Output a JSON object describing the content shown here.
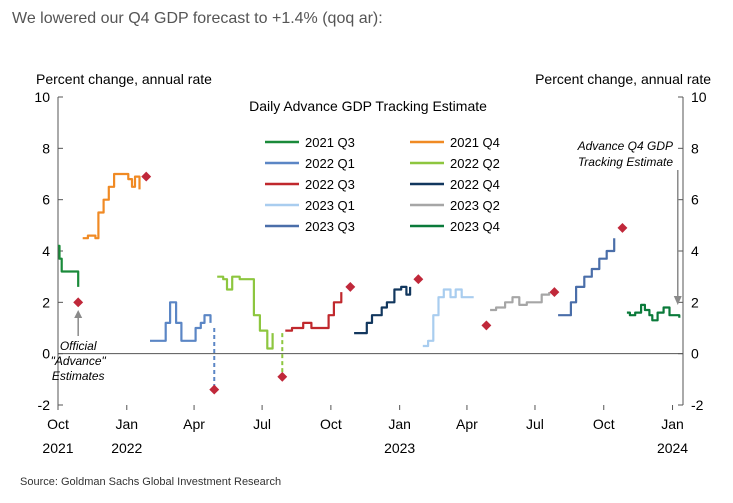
{
  "headline": "We lowered our Q4 GDP forecast to +1.4% (qoq ar):",
  "source": "Source: Goldman Sachs Global Investment Research",
  "colors": {
    "2021 Q3": "#1a8a3a",
    "2021 Q4": "#f08a24",
    "2022 Q1": "#5b86c5",
    "2022 Q2": "#8dc63f",
    "2022 Q3": "#c0282d",
    "2022 Q4": "#12375e",
    "2023 Q1": "#a9cdef",
    "2023 Q2": "#a6a6a6",
    "2023 Q3": "#4a6ea9",
    "2023 Q4": "#0a7a3a",
    "advance_marker": "#c0283a",
    "arrow": "#8a8a8a",
    "axis": "#555555"
  },
  "chart_data": {
    "type": "line",
    "title": "Daily Advance  GDP Tracking Estimate",
    "ylabel_left": "Percent change, annual rate",
    "ylabel_right": "Percent change, annual rate",
    "ylim": [
      -2,
      10
    ],
    "yticks": [
      -2,
      0,
      2,
      4,
      6,
      8,
      10
    ],
    "xlim": [
      "2021-10-01",
      "2024-01-15"
    ],
    "xticks": [
      {
        "date": "2021-10-01",
        "label": "Oct",
        "year": "2021"
      },
      {
        "date": "2022-01-01",
        "label": "Jan",
        "year": "2022"
      },
      {
        "date": "2022-04-01",
        "label": "Apr",
        "year": ""
      },
      {
        "date": "2022-07-01",
        "label": "Jul",
        "year": ""
      },
      {
        "date": "2022-10-01",
        "label": "Oct",
        "year": ""
      },
      {
        "date": "2023-01-01",
        "label": "Jan",
        "year": "2023"
      },
      {
        "date": "2023-04-01",
        "label": "Apr",
        "year": ""
      },
      {
        "date": "2023-07-01",
        "label": "Jul",
        "year": ""
      },
      {
        "date": "2023-10-01",
        "label": "Oct",
        "year": ""
      },
      {
        "date": "2024-01-01",
        "label": "Jan",
        "year": "2024"
      }
    ],
    "legend_placement": "top-center",
    "grid": false,
    "series": [
      {
        "name": "2021 Q3",
        "points": [
          [
            "2021-10-01",
            4.2
          ],
          [
            "2021-10-03",
            3.7
          ],
          [
            "2021-10-06",
            3.2
          ],
          [
            "2021-10-28",
            3.2
          ],
          [
            "2021-10-28",
            2.6
          ]
        ],
        "advance": {
          "date": "2021-10-28",
          "value": 2.0
        },
        "dashed_drop": false
      },
      {
        "name": "2021 Q4",
        "points": [
          [
            "2021-11-03",
            4.5
          ],
          [
            "2021-11-10",
            4.6
          ],
          [
            "2021-11-20",
            4.5
          ],
          [
            "2021-11-24",
            5.5
          ],
          [
            "2021-12-01",
            6.0
          ],
          [
            "2021-12-08",
            6.5
          ],
          [
            "2021-12-15",
            7.0
          ],
          [
            "2021-12-25",
            7.0
          ],
          [
            "2022-01-03",
            6.8
          ],
          [
            "2022-01-08",
            6.5
          ],
          [
            "2022-01-12",
            6.9
          ],
          [
            "2022-01-18",
            6.4
          ]
        ],
        "advance": {
          "date": "2022-01-27",
          "value": 6.9
        },
        "dashed_drop": false
      },
      {
        "name": "2022 Q1",
        "points": [
          [
            "2022-02-01",
            0.5
          ],
          [
            "2022-02-15",
            0.5
          ],
          [
            "2022-02-22",
            1.2
          ],
          [
            "2022-02-28",
            2.0
          ],
          [
            "2022-03-08",
            1.2
          ],
          [
            "2022-03-15",
            0.5
          ],
          [
            "2022-03-28",
            0.5
          ],
          [
            "2022-04-03",
            1.0
          ],
          [
            "2022-04-10",
            1.2
          ],
          [
            "2022-04-15",
            1.5
          ],
          [
            "2022-04-23",
            1.2
          ]
        ],
        "advance": {
          "date": "2022-04-28",
          "value": -1.4
        },
        "dashed_drop": true,
        "drop_from": [
          "2022-04-28",
          1.0
        ]
      },
      {
        "name": "2022 Q2",
        "points": [
          [
            "2022-05-02",
            3.0
          ],
          [
            "2022-05-10",
            2.9
          ],
          [
            "2022-05-15",
            2.5
          ],
          [
            "2022-05-22",
            3.0
          ],
          [
            "2022-06-01",
            2.9
          ],
          [
            "2022-06-15",
            2.9
          ],
          [
            "2022-06-20",
            1.5
          ],
          [
            "2022-06-28",
            0.9
          ],
          [
            "2022-07-08",
            0.2
          ],
          [
            "2022-07-15",
            0.8
          ]
        ],
        "advance": {
          "date": "2022-07-28",
          "value": -0.9
        },
        "dashed_drop": true,
        "drop_from": [
          "2022-07-28",
          0.8
        ]
      },
      {
        "name": "2022 Q3",
        "points": [
          [
            "2022-08-01",
            0.9
          ],
          [
            "2022-08-10",
            1.0
          ],
          [
            "2022-08-18",
            1.0
          ],
          [
            "2022-08-25",
            1.2
          ],
          [
            "2022-09-05",
            1.0
          ],
          [
            "2022-09-20",
            1.0
          ],
          [
            "2022-09-28",
            1.5
          ],
          [
            "2022-10-05",
            2.0
          ],
          [
            "2022-10-15",
            2.4
          ]
        ],
        "advance": {
          "date": "2022-10-27",
          "value": 2.6
        },
        "dashed_drop": false
      },
      {
        "name": "2022 Q4",
        "points": [
          [
            "2022-11-01",
            0.8
          ],
          [
            "2022-11-08",
            0.8
          ],
          [
            "2022-11-18",
            1.2
          ],
          [
            "2022-11-25",
            1.5
          ],
          [
            "2022-12-08",
            1.8
          ],
          [
            "2022-12-15",
            2.0
          ],
          [
            "2022-12-25",
            2.5
          ],
          [
            "2023-01-03",
            2.6
          ],
          [
            "2023-01-10",
            2.3
          ],
          [
            "2023-01-15",
            2.6
          ]
        ],
        "advance": {
          "date": "2023-01-26",
          "value": 2.9
        },
        "dashed_drop": false
      },
      {
        "name": "2023 Q1",
        "points": [
          [
            "2023-02-01",
            0.3
          ],
          [
            "2023-02-08",
            0.5
          ],
          [
            "2023-02-15",
            1.5
          ],
          [
            "2023-02-22",
            2.2
          ],
          [
            "2023-03-01",
            2.5
          ],
          [
            "2023-03-10",
            2.2
          ],
          [
            "2023-03-17",
            2.5
          ],
          [
            "2023-03-25",
            2.2
          ],
          [
            "2023-04-10",
            2.2
          ]
        ],
        "advance": {
          "date": "2023-04-27",
          "value": 1.1
        },
        "dashed_drop": false
      },
      {
        "name": "2023 Q2",
        "points": [
          [
            "2023-05-02",
            1.7
          ],
          [
            "2023-05-10",
            1.8
          ],
          [
            "2023-05-22",
            2.0
          ],
          [
            "2023-06-01",
            2.2
          ],
          [
            "2023-06-10",
            1.9
          ],
          [
            "2023-06-20",
            2.0
          ],
          [
            "2023-07-10",
            2.3
          ],
          [
            "2023-07-20",
            2.4
          ]
        ],
        "advance": {
          "date": "2023-07-27",
          "value": 2.4
        },
        "dashed_drop": false
      },
      {
        "name": "2023 Q3",
        "points": [
          [
            "2023-08-01",
            1.5
          ],
          [
            "2023-08-10",
            1.5
          ],
          [
            "2023-08-18",
            2.0
          ],
          [
            "2023-08-25",
            2.6
          ],
          [
            "2023-09-05",
            3.0
          ],
          [
            "2023-09-15",
            3.3
          ],
          [
            "2023-09-25",
            3.7
          ],
          [
            "2023-10-05",
            4.0
          ],
          [
            "2023-10-15",
            4.5
          ]
        ],
        "advance": {
          "date": "2023-10-26",
          "value": 4.9
        },
        "dashed_drop": false
      },
      {
        "name": "2023 Q4",
        "points": [
          [
            "2023-11-01",
            1.6
          ],
          [
            "2023-11-05",
            1.5
          ],
          [
            "2023-11-12",
            1.6
          ],
          [
            "2023-11-20",
            1.9
          ],
          [
            "2023-11-25",
            1.7
          ],
          [
            "2023-12-01",
            1.5
          ],
          [
            "2023-12-05",
            1.3
          ],
          [
            "2023-12-12",
            1.6
          ],
          [
            "2023-12-20",
            1.8
          ],
          [
            "2023-12-28",
            1.5
          ],
          [
            "2024-01-05",
            1.5
          ],
          [
            "2024-01-10",
            1.4
          ]
        ],
        "advance": null,
        "dashed_drop": false
      }
    ],
    "annotations": {
      "official": {
        "lines": [
          "Official",
          "\"Advance\"",
          "Estimates"
        ]
      },
      "advance_q4": {
        "lines": [
          "Advance  Q4 GDP",
          "Tracking Estimate"
        ]
      }
    }
  }
}
